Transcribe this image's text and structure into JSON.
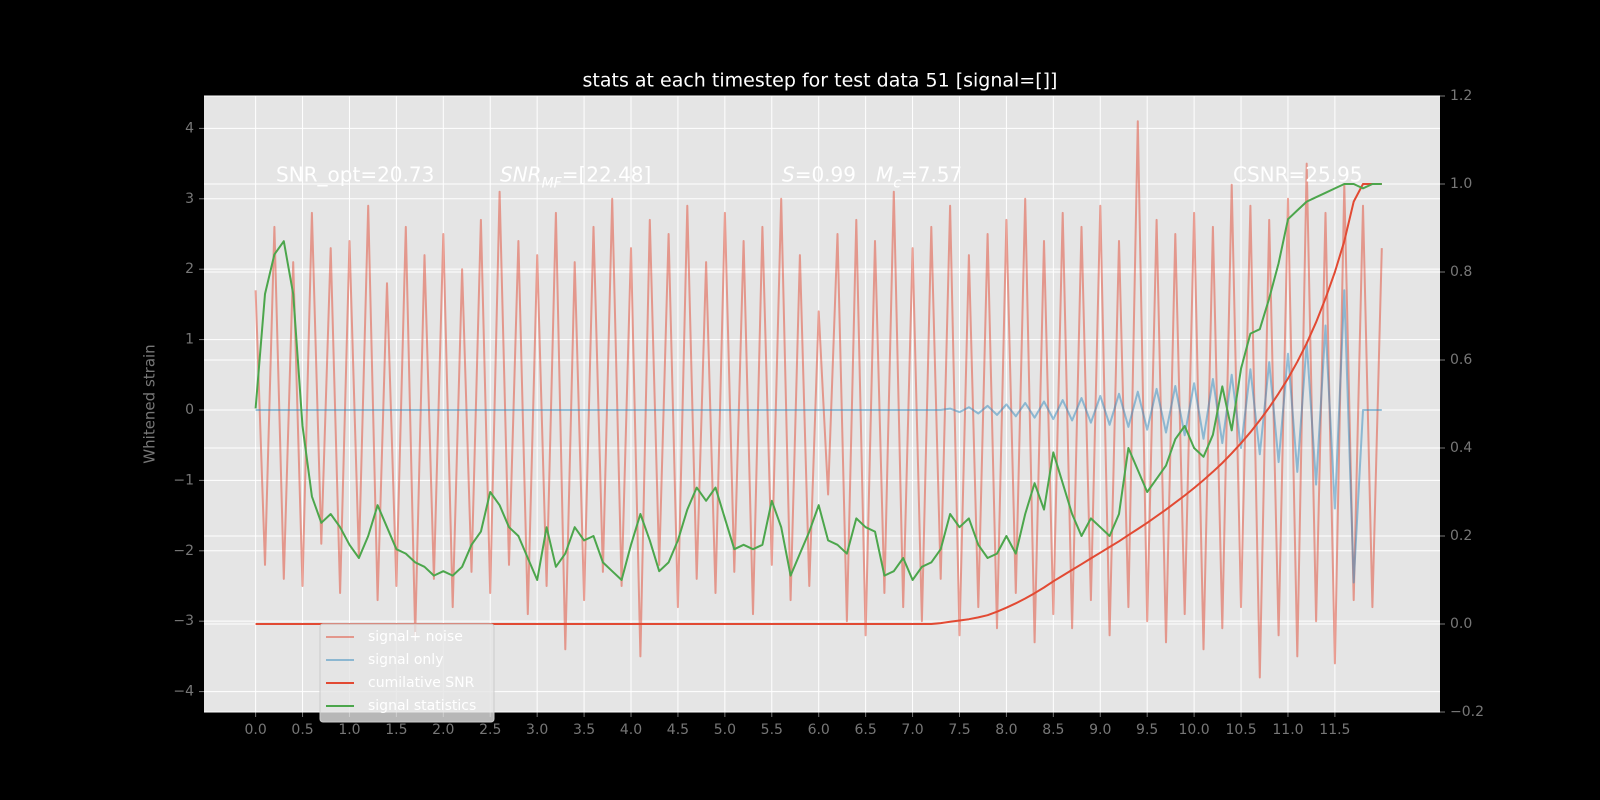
{
  "chart_data": {
    "type": "line",
    "title": "stats at each timestep for test data 51 [signal=[]]",
    "ylabel": "Whitened strain",
    "annotations": [
      [
        {
          "text": "SNR_opt=20.73"
        }
      ],
      [
        {
          "text": "SNR",
          "italic": true
        },
        {
          "text": "MF",
          "italic": true,
          "sub": true
        },
        {
          "text": "=[22.48]"
        }
      ],
      [
        {
          "text": "S",
          "italic": true
        },
        {
          "text": "=0.99"
        }
      ],
      [
        {
          "text": "M",
          "italic": true
        },
        {
          "text": "c",
          "italic": true,
          "sub": true
        },
        {
          "text": "=7.57"
        }
      ],
      [
        {
          "text": "CSNR=25.95"
        }
      ]
    ],
    "x": [
      0.0,
      0.1,
      0.2,
      0.3,
      0.4,
      0.5,
      0.6,
      0.7,
      0.8,
      0.9,
      1.0,
      1.1,
      1.2,
      1.3,
      1.4,
      1.5,
      1.6,
      1.7,
      1.8,
      1.9,
      2.0,
      2.1,
      2.2,
      2.3,
      2.4,
      2.5,
      2.6,
      2.7,
      2.8,
      2.9,
      3.0,
      3.1,
      3.2,
      3.3,
      3.4,
      3.5,
      3.6,
      3.7,
      3.8,
      3.9,
      4.0,
      4.1,
      4.2,
      4.3,
      4.4,
      4.5,
      4.6,
      4.7,
      4.8,
      4.9,
      5.0,
      5.1,
      5.2,
      5.3,
      5.4,
      5.5,
      5.6,
      5.7,
      5.8,
      5.9,
      6.0,
      6.1,
      6.2,
      6.3,
      6.4,
      6.5,
      6.6,
      6.7,
      6.8,
      6.9,
      7.0,
      7.1,
      7.2,
      7.3,
      7.4,
      7.5,
      7.6,
      7.7,
      7.8,
      7.9,
      8.0,
      8.1,
      8.2,
      8.3,
      8.4,
      8.5,
      8.6,
      8.7,
      8.8,
      8.9,
      9.0,
      9.1,
      9.2,
      9.3,
      9.4,
      9.5,
      9.6,
      9.7,
      9.8,
      9.9,
      10.0,
      10.1,
      10.2,
      10.3,
      10.4,
      10.5,
      10.6,
      10.7,
      10.8,
      10.9,
      11.0,
      11.1,
      11.2,
      11.3,
      11.4,
      11.5,
      11.6,
      11.7,
      11.8,
      11.9,
      12.0
    ],
    "series": [
      {
        "name": "signal+ noise",
        "color": "#E24A33",
        "opacity": 0.5,
        "values": [
          1.7,
          -2.2,
          2.6,
          -2.4,
          2.1,
          -2.5,
          2.8,
          -1.9,
          2.3,
          -2.6,
          2.4,
          -2.1,
          2.9,
          -2.7,
          1.8,
          -2.5,
          2.6,
          -3.2,
          2.2,
          -2.4,
          2.5,
          -2.8,
          2.0,
          -2.3,
          2.7,
          -2.6,
          3.1,
          -2.2,
          2.4,
          -2.9,
          2.2,
          -2.5,
          2.8,
          -3.4,
          2.1,
          -2.7,
          2.6,
          -2.3,
          3.0,
          -2.5,
          2.3,
          -3.5,
          2.7,
          -2.2,
          2.5,
          -2.8,
          2.9,
          -2.4,
          2.1,
          -2.6,
          2.8,
          -2.3,
          2.4,
          -2.9,
          2.6,
          -2.2,
          3.0,
          -2.7,
          2.2,
          -2.5,
          1.4,
          -1.2,
          2.5,
          -3.0,
          2.7,
          -3.2,
          2.4,
          -2.6,
          3.1,
          -2.8,
          2.3,
          -3.0,
          2.6,
          -2.4,
          2.9,
          -3.2,
          2.2,
          -2.8,
          2.5,
          -3.1,
          2.7,
          -2.6,
          3.0,
          -3.3,
          2.4,
          -2.9,
          2.8,
          -3.1,
          2.6,
          -2.7,
          2.9,
          -3.2,
          2.4,
          -2.8,
          4.1,
          -3.0,
          2.7,
          -3.3,
          2.5,
          -2.9,
          2.8,
          -3.4,
          2.6,
          -3.1,
          3.2,
          -2.8,
          2.9,
          -3.8,
          2.7,
          -3.2,
          3.0,
          -3.5,
          3.5,
          -3.0,
          2.8,
          -3.6,
          3.2,
          -2.7,
          2.9,
          -2.8,
          2.3
        ]
      },
      {
        "name": "signal only",
        "color": "#348ABD",
        "opacity": 0.5,
        "values": [
          0,
          0,
          0,
          0,
          0,
          0,
          0,
          0,
          0,
          0,
          0,
          0,
          0,
          0,
          0,
          0,
          0,
          0,
          0,
          0,
          0,
          0,
          0,
          0,
          0,
          0,
          0,
          0,
          0,
          0,
          0,
          0,
          0,
          0,
          0,
          0,
          0,
          0,
          0,
          0,
          0,
          0,
          0,
          0,
          0,
          0,
          0,
          0,
          0,
          0,
          0,
          0,
          0,
          0,
          0,
          0,
          0,
          0,
          0,
          0,
          0,
          0,
          0,
          0,
          0,
          0,
          0,
          0,
          0,
          0,
          0,
          0,
          0,
          0,
          0.02,
          -0.03,
          0.04,
          -0.05,
          0.06,
          -0.07,
          0.08,
          -0.09,
          0.1,
          -0.11,
          0.12,
          -0.13,
          0.14,
          -0.15,
          0.17,
          -0.18,
          0.2,
          -0.21,
          0.23,
          -0.24,
          0.26,
          -0.28,
          0.3,
          -0.32,
          0.34,
          -0.36,
          0.38,
          -0.41,
          0.44,
          -0.47,
          0.5,
          -0.54,
          0.58,
          -0.63,
          0.68,
          -0.74,
          0.8,
          -0.88,
          0.96,
          -1.06,
          1.2,
          -1.4,
          1.7,
          -2.45,
          0,
          0,
          0
        ]
      },
      {
        "name": "cumilative SNR",
        "color": "#E24A33",
        "axis": "y2",
        "values": [
          0,
          0,
          0,
          0,
          0,
          0,
          0,
          0,
          0,
          0,
          0,
          0,
          0,
          0,
          0,
          0,
          0,
          0,
          0,
          0,
          0,
          0,
          0,
          0,
          0,
          0,
          0,
          0,
          0,
          0,
          0,
          0,
          0,
          0,
          0,
          0,
          0,
          0,
          0,
          0,
          0,
          0,
          0,
          0,
          0,
          0,
          0,
          0,
          0,
          0,
          0,
          0,
          0,
          0,
          0,
          0,
          0,
          0,
          0,
          0,
          0,
          0,
          0,
          0,
          0,
          0,
          0,
          0,
          0,
          0,
          0,
          0,
          0,
          0.002,
          0.005,
          0.008,
          0.011,
          0.015,
          0.02,
          0.028,
          0.037,
          0.047,
          0.058,
          0.07,
          0.083,
          0.097,
          0.11,
          0.123,
          0.136,
          0.149,
          0.162,
          0.175,
          0.188,
          0.202,
          0.216,
          0.23,
          0.245,
          0.26,
          0.276,
          0.292,
          0.309,
          0.327,
          0.346,
          0.366,
          0.388,
          0.411,
          0.436,
          0.463,
          0.492,
          0.524,
          0.558,
          0.596,
          0.638,
          0.686,
          0.74,
          0.8,
          0.87,
          0.96,
          1.0,
          1.0,
          1.0
        ]
      },
      {
        "name": "signal statistics",
        "color": "#4CA64C",
        "axis": "y2",
        "values": [
          0.49,
          0.75,
          0.84,
          0.87,
          0.75,
          0.45,
          0.29,
          0.23,
          0.25,
          0.22,
          0.18,
          0.15,
          0.2,
          0.27,
          0.22,
          0.17,
          0.16,
          0.14,
          0.13,
          0.11,
          0.12,
          0.11,
          0.13,
          0.18,
          0.21,
          0.3,
          0.27,
          0.22,
          0.2,
          0.15,
          0.1,
          0.22,
          0.13,
          0.16,
          0.22,
          0.19,
          0.2,
          0.14,
          0.12,
          0.1,
          0.18,
          0.25,
          0.19,
          0.12,
          0.14,
          0.19,
          0.26,
          0.31,
          0.28,
          0.31,
          0.24,
          0.17,
          0.18,
          0.17,
          0.18,
          0.28,
          0.22,
          0.11,
          0.16,
          0.21,
          0.27,
          0.19,
          0.18,
          0.16,
          0.24,
          0.22,
          0.21,
          0.11,
          0.12,
          0.15,
          0.1,
          0.13,
          0.14,
          0.17,
          0.25,
          0.22,
          0.24,
          0.18,
          0.15,
          0.16,
          0.2,
          0.16,
          0.25,
          0.32,
          0.26,
          0.39,
          0.32,
          0.25,
          0.2,
          0.24,
          0.22,
          0.2,
          0.25,
          0.4,
          0.35,
          0.3,
          0.33,
          0.36,
          0.42,
          0.45,
          0.4,
          0.38,
          0.43,
          0.54,
          0.44,
          0.58,
          0.66,
          0.67,
          0.74,
          0.82,
          0.92,
          0.94,
          0.96,
          0.97,
          0.98,
          0.99,
          1.0,
          1.0,
          0.99,
          1.0,
          1.0
        ]
      }
    ],
    "xlim": [
      -0.55,
      12.62
    ],
    "xticks": [
      {
        "value": 0,
        "label": "0.0"
      },
      0.5,
      {
        "value": 1,
        "label": "1.0"
      },
      1.5,
      {
        "value": 2,
        "label": "2.0"
      },
      2.5,
      {
        "value": 3,
        "label": "3.0"
      },
      3.5,
      {
        "value": 4,
        "label": "4.0"
      },
      4.5,
      {
        "value": 5,
        "label": "5.0"
      },
      5.5,
      {
        "value": 6,
        "label": "6.0"
      },
      6.5,
      {
        "value": 7,
        "label": "7.0"
      },
      7.5,
      {
        "value": 8,
        "label": "8.0"
      },
      8.5,
      {
        "value": 9,
        "label": "9.0"
      },
      9.5,
      {
        "value": 10,
        "label": "10.0"
      },
      10.5,
      {
        "value": 11,
        "label": "11.0"
      },
      11.5
    ],
    "ylim": [
      -4.29,
      4.46
    ],
    "yticks": [
      {
        "value": -4,
        "label": "−4"
      },
      {
        "value": -3,
        "label": "−3"
      },
      {
        "value": -2,
        "label": "−2"
      },
      {
        "value": -1,
        "label": "−1"
      },
      0,
      1,
      2,
      3,
      4
    ],
    "y2lim": [
      -0.2,
      1.2
    ],
    "y2ticks": [
      {
        "value": -0.2,
        "label": "−0.2"
      },
      {
        "value": 0,
        "label": "0.0"
      },
      0.2,
      0.4,
      0.6,
      0.8,
      {
        "value": 1,
        "label": "1.0"
      },
      1.2
    ],
    "grid": true,
    "legend": "lower left"
  }
}
